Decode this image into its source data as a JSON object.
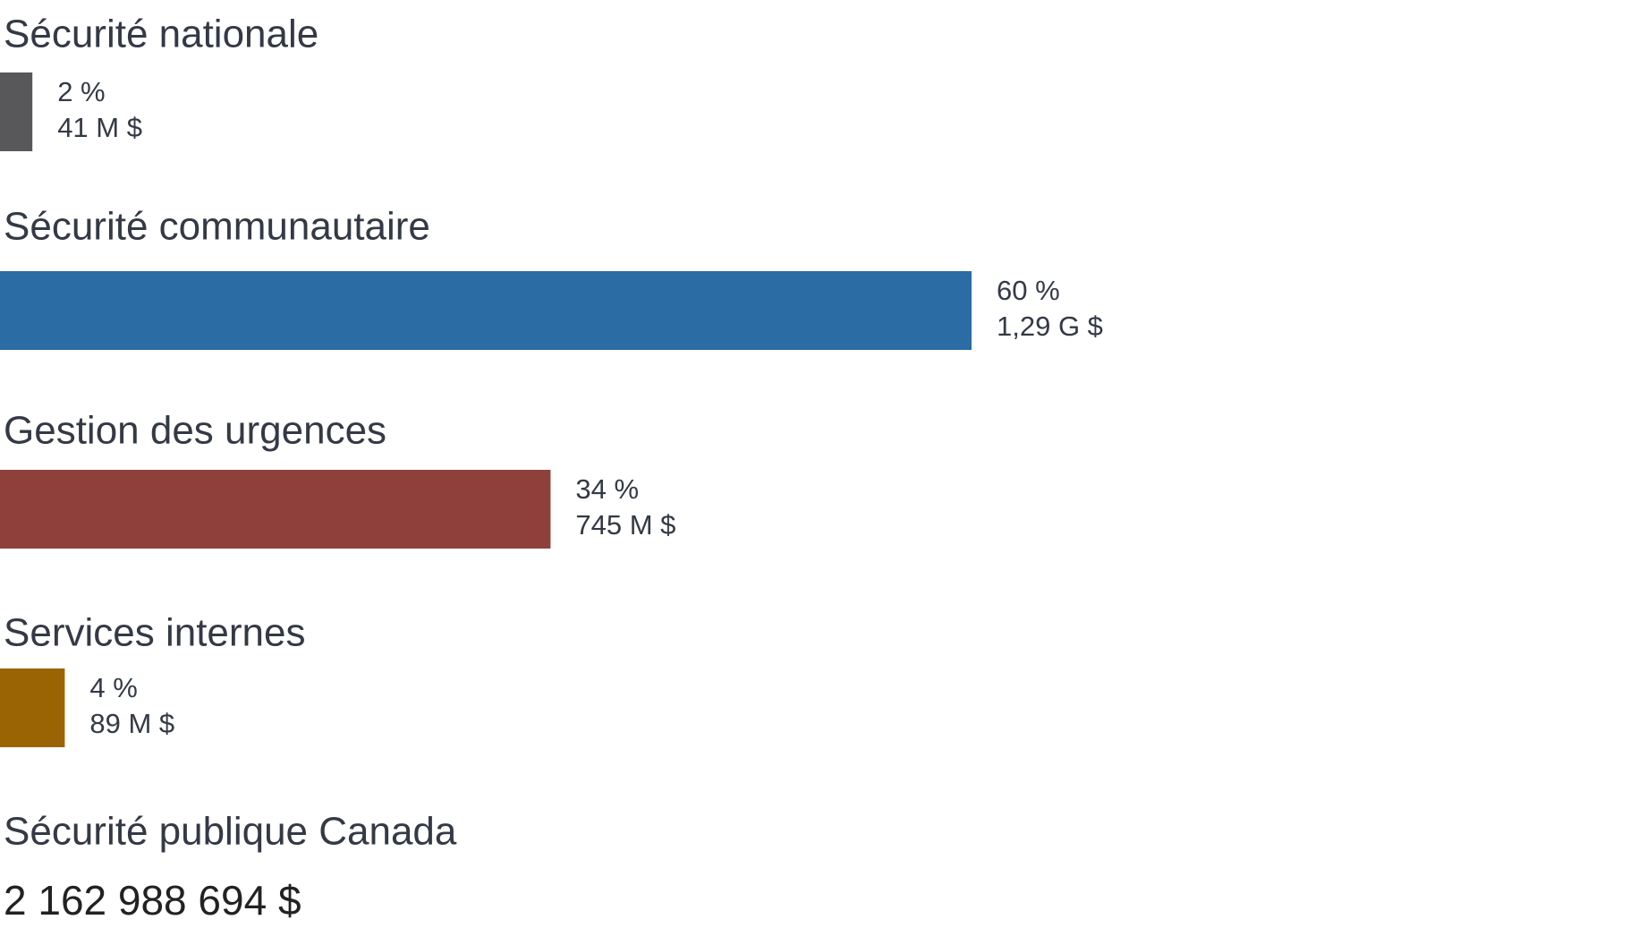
{
  "chart_data": {
    "type": "hbar",
    "categories": [
      "Sécurité nationale",
      "Sécurité communautaire",
      "Gestion des urgences",
      "Services internes"
    ],
    "values": [
      2,
      60,
      34,
      4
    ],
    "value_labels": [
      "2 %",
      "60 %",
      "34 %",
      "4 %"
    ],
    "amount_labels": [
      "41 M $",
      "1,29 G $",
      "745 M $",
      "89 M $"
    ],
    "colors": [
      "#58585a",
      "#2a6ca3",
      "#8f403b",
      "#9a6405"
    ],
    "xlim": [
      0,
      100
    ],
    "total_title": "Sécurité publique Canada",
    "total": "2 162 988 694 $"
  }
}
